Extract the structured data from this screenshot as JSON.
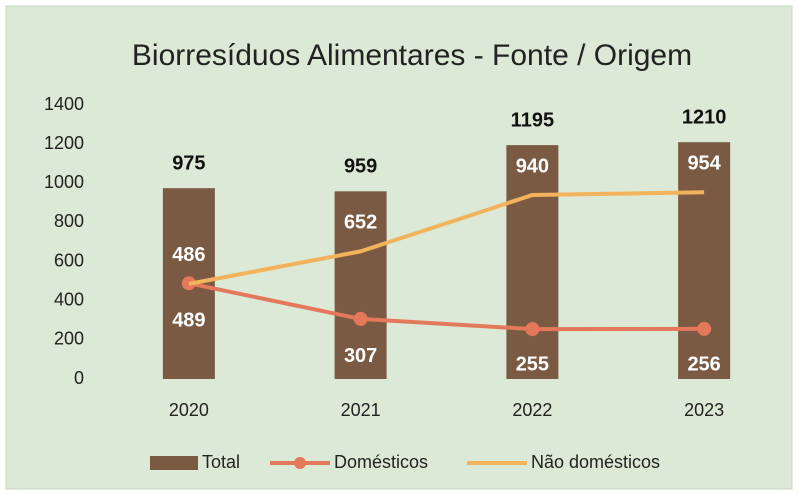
{
  "chart_data": {
    "type": "bar",
    "title": "Biorresíduos Alimentares - Fonte / Origem",
    "categories": [
      "2020",
      "2021",
      "2022",
      "2023"
    ],
    "series": [
      {
        "name": "Total",
        "type": "bar",
        "color": "#7b5a43",
        "values": [
          975,
          959,
          1195,
          1210
        ],
        "label_position": "above",
        "label_color": "#111111"
      },
      {
        "name": "Domésticos",
        "type": "line",
        "color": "#e4785a",
        "marker": "circle",
        "values": [
          489,
          307,
          255,
          256
        ],
        "label_position": "below",
        "label_color": "#ffffff"
      },
      {
        "name": "Não domésticos",
        "type": "line",
        "color": "#f2b35c",
        "values": [
          486,
          652,
          940,
          954
        ],
        "label_position": "above",
        "label_color": "#ffffff"
      }
    ],
    "ylim": [
      0,
      1400
    ],
    "yticks": [
      0,
      200,
      400,
      600,
      800,
      1000,
      1200,
      1400
    ],
    "grid": false,
    "legend": "bottom"
  }
}
